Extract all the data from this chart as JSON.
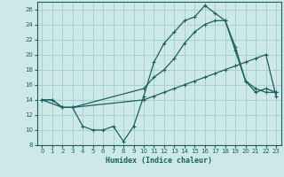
{
  "bg_color": "#cce8e8",
  "grid_color": "#aacfcf",
  "line_color": "#1a6060",
  "xlabel": "Humidex (Indice chaleur)",
  "xlim": [
    -0.5,
    23.5
  ],
  "ylim": [
    8,
    27
  ],
  "xticks": [
    0,
    1,
    2,
    3,
    4,
    5,
    6,
    7,
    8,
    9,
    10,
    11,
    12,
    13,
    14,
    15,
    16,
    17,
    18,
    19,
    20,
    21,
    22,
    23
  ],
  "yticks": [
    8,
    10,
    12,
    14,
    16,
    18,
    20,
    22,
    24,
    26
  ],
  "line1_x": [
    0,
    1,
    2,
    3,
    4,
    5,
    6,
    7,
    8,
    9,
    10,
    11,
    12,
    13,
    14,
    15,
    16,
    17,
    18,
    19,
    20,
    21,
    22,
    23
  ],
  "line1_y": [
    14,
    14,
    13,
    13,
    10.5,
    10,
    10,
    10.5,
    8.5,
    10.5,
    14.5,
    19,
    21.5,
    23,
    24.5,
    25,
    26.5,
    25.5,
    24.5,
    20.5,
    16.5,
    15,
    15.5,
    15
  ],
  "line2_x": [
    0,
    2,
    3,
    10,
    11,
    12,
    13,
    14,
    15,
    16,
    17,
    18,
    19,
    20,
    21,
    22,
    23
  ],
  "line2_y": [
    14,
    13,
    13,
    15.5,
    17,
    18,
    19.5,
    21.5,
    23,
    24,
    24.5,
    24.5,
    21,
    16.5,
    15.5,
    15,
    15
  ],
  "line3_x": [
    0,
    1,
    2,
    3,
    10,
    11,
    12,
    13,
    14,
    15,
    16,
    17,
    18,
    19,
    20,
    21,
    22,
    23
  ],
  "line3_y": [
    14,
    14,
    13,
    13,
    14,
    14.5,
    15,
    15.5,
    16,
    16.5,
    17,
    17.5,
    18,
    18.5,
    19,
    19.5,
    20,
    14.5
  ]
}
